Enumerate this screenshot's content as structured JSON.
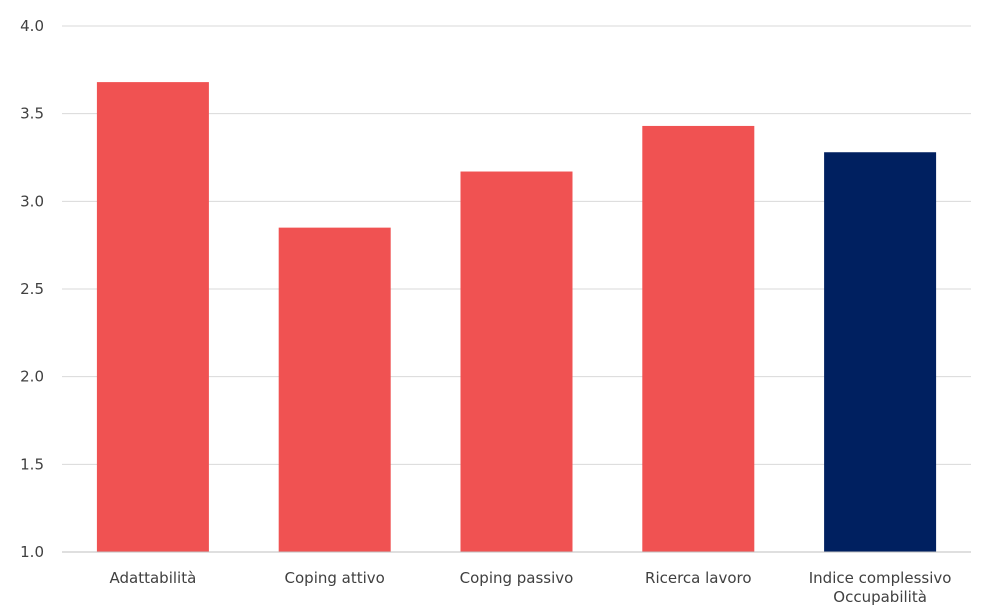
{
  "chart_data": {
    "type": "bar",
    "categories": [
      [
        "Adattabilità"
      ],
      [
        "Coping attivo"
      ],
      [
        "Coping passivo"
      ],
      [
        "Ricerca lavoro"
      ],
      [
        "Indice complessivo",
        "Occupabilità"
      ]
    ],
    "values": [
      3.68,
      2.85,
      3.17,
      3.43,
      3.28
    ],
    "ylim": [
      1.0,
      4.0
    ],
    "yticks": [
      "1.0",
      "1.5",
      "2.0",
      "2.5",
      "3.0",
      "3.5",
      "4.0"
    ],
    "grid": true,
    "bar_colors": [
      "#f05252",
      "#f05252",
      "#f05252",
      "#f05252",
      "#002060"
    ],
    "title": "",
    "xlabel": "",
    "ylabel": ""
  }
}
